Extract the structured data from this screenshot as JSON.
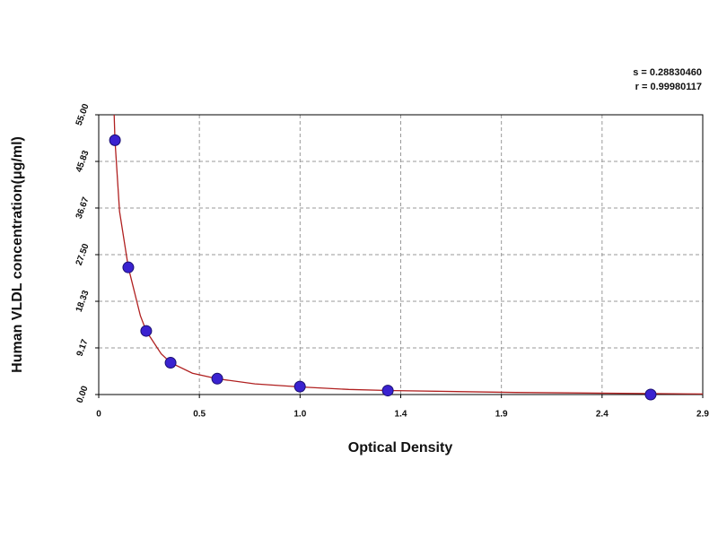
{
  "chart_data": {
    "type": "scatter",
    "stats": [
      "s = 0.28830460",
      "r = 0.99980117"
    ],
    "x_label": "Optical Density",
    "y_label": "Human VLDL concentration(μg/ml)",
    "x": [
      0.078,
      0.142,
      0.228,
      0.345,
      0.569,
      0.966,
      1.388,
      2.65
    ],
    "values": [
      50,
      25,
      12.5,
      6.25,
      3.12,
      1.56,
      0.78,
      0
    ],
    "color": "#3a22d0",
    "curve": {
      "color": "#b02020",
      "x": [
        0.074,
        0.078,
        0.1,
        0.142,
        0.2,
        0.228,
        0.3,
        0.345,
        0.45,
        0.569,
        0.75,
        0.966,
        1.2,
        1.388,
        2.0,
        2.9
      ],
      "values": [
        55,
        50,
        36,
        25,
        15.5,
        12.5,
        8,
        6.25,
        4.2,
        3.1,
        2.1,
        1.5,
        1.0,
        0.8,
        0.4,
        0.1
      ]
    },
    "xlim": [
      0,
      2.9
    ],
    "xticks": [
      0,
      {
        "value": 0.4833,
        "label": "0.5"
      },
      {
        "value": 0.9667,
        "label": "1.0"
      },
      {
        "value": 1.45,
        "label": "1.4"
      },
      {
        "value": 1.9333,
        "label": "1.9"
      },
      {
        "value": 2.4167,
        "label": "2.4"
      },
      2.9
    ],
    "ylim": [
      0,
      55
    ],
    "yticks": [
      {
        "value": 0,
        "label": "0.00"
      },
      9.17,
      18.33,
      {
        "value": 27.5,
        "label": "27.50"
      },
      36.67,
      45.83,
      {
        "value": 55,
        "label": "55.00"
      }
    ],
    "grid": true
  }
}
